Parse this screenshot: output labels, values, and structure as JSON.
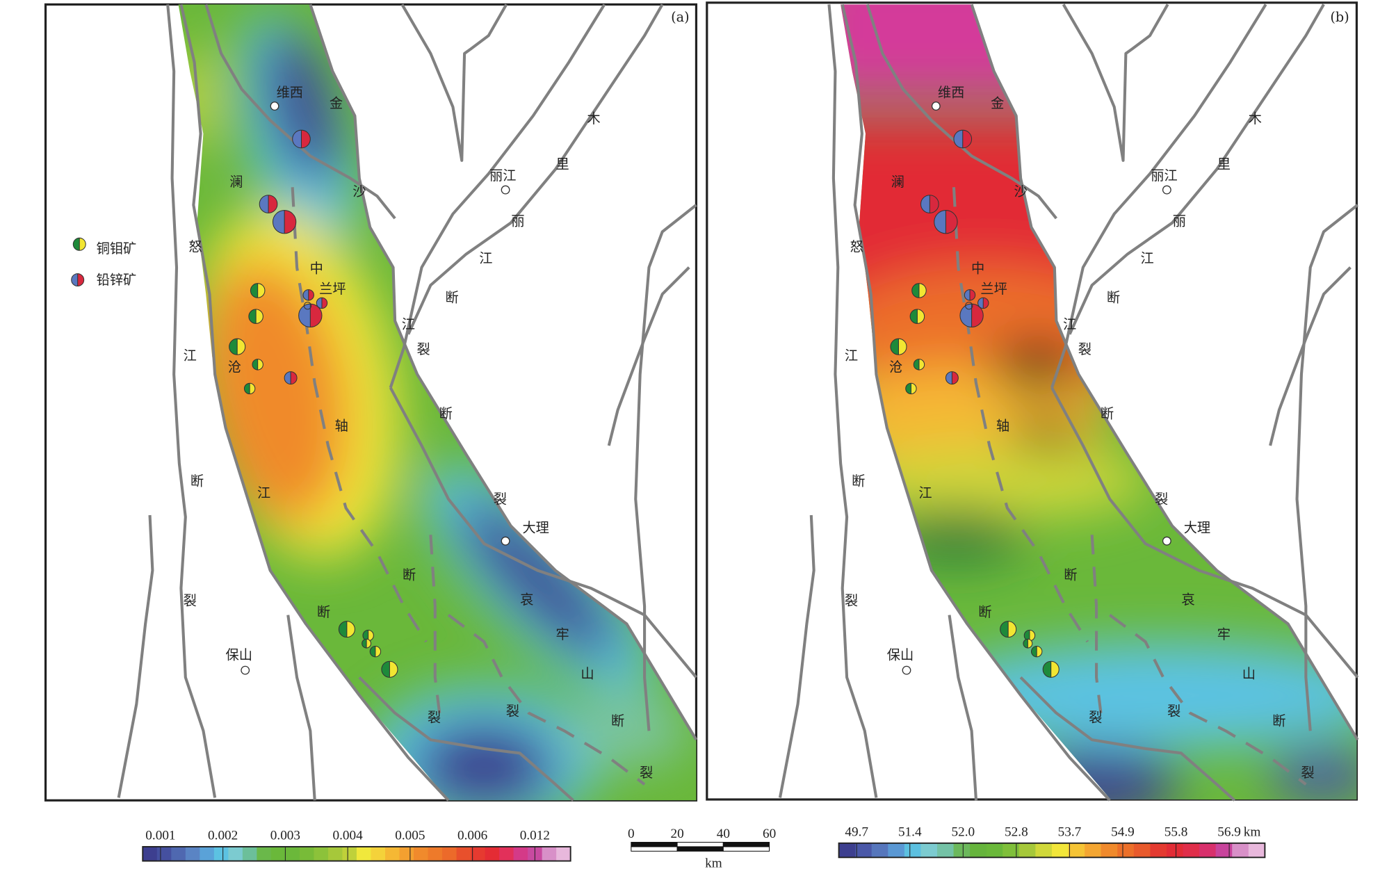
{
  "panels": [
    {
      "tag": "(a)",
      "title_bind": "a"
    },
    {
      "tag": "(b)",
      "title_bind": "b"
    }
  ],
  "map_labels": [
    "维西",
    "金",
    "木",
    "里",
    "丽江",
    "澜",
    "沙",
    "丽",
    "怒",
    "江",
    "中",
    "兰坪",
    "断",
    "江",
    "裂",
    "江",
    "沧",
    "断",
    "轴",
    "断",
    "江",
    "裂",
    "大理",
    "断",
    "哀",
    "裂",
    "断",
    "牢",
    "保山",
    "山",
    "裂",
    "裂",
    "断",
    "裂"
  ],
  "legend": {
    "items": [
      {
        "label": "铜钼矿",
        "colors": [
          "#1e8a3a",
          "#f2e632"
        ]
      },
      {
        "label": "铅锌矿",
        "colors": [
          "#5a78c0",
          "#d8283e"
        ]
      }
    ]
  },
  "colorbar_a": {
    "ticks": [
      "0.001",
      "0.002",
      "0.003",
      "0.004",
      "0.005",
      "0.006",
      "0.012"
    ],
    "colors": [
      "#3d3f8f",
      "#45509f",
      "#4f68b0",
      "#5a84c4",
      "#5aa2d8",
      "#5cc2e2",
      "#7ccbd0",
      "#6cbf9a",
      "#6ab84a",
      "#6ab83a",
      "#6bb83a",
      "#78bb38",
      "#8cc23a",
      "#a6c83a",
      "#bfd13a",
      "#f0e83c",
      "#f4d23a",
      "#f5b834",
      "#f3a030",
      "#f08a2c",
      "#ee7a2a",
      "#ec6a2a",
      "#e8502c",
      "#e63a30",
      "#e42c34",
      "#e2305a",
      "#d43a88",
      "#c84aa0",
      "#d890c8",
      "#e8b8dc"
    ]
  },
  "colorbar_b": {
    "ticks": [
      "49.7",
      "51.4",
      "52.0",
      "52.8",
      "53.7",
      "54.9",
      "55.8",
      "56.9"
    ],
    "unit": "km",
    "colors": [
      "#3d3f8f",
      "#4a58a8",
      "#5676bc",
      "#5a98d4",
      "#5cc0e0",
      "#7ccbd0",
      "#74c2a6",
      "#6cb85c",
      "#66b43c",
      "#6ab83a",
      "#7fbf3a",
      "#a6c83a",
      "#d0d83a",
      "#f2e63a",
      "#f5c436",
      "#f4a632",
      "#f08a2c",
      "#ec702a",
      "#e85a2c",
      "#e43a30",
      "#e22c36",
      "#e02e4a",
      "#d8306c",
      "#c8449c",
      "#d890c8",
      "#e8b8dc"
    ]
  },
  "scale_bar": {
    "ticks": [
      "0",
      "20",
      "40",
      "60"
    ],
    "unit": "km"
  },
  "colors": {
    "fault": "#808080",
    "frame": "#222222"
  }
}
